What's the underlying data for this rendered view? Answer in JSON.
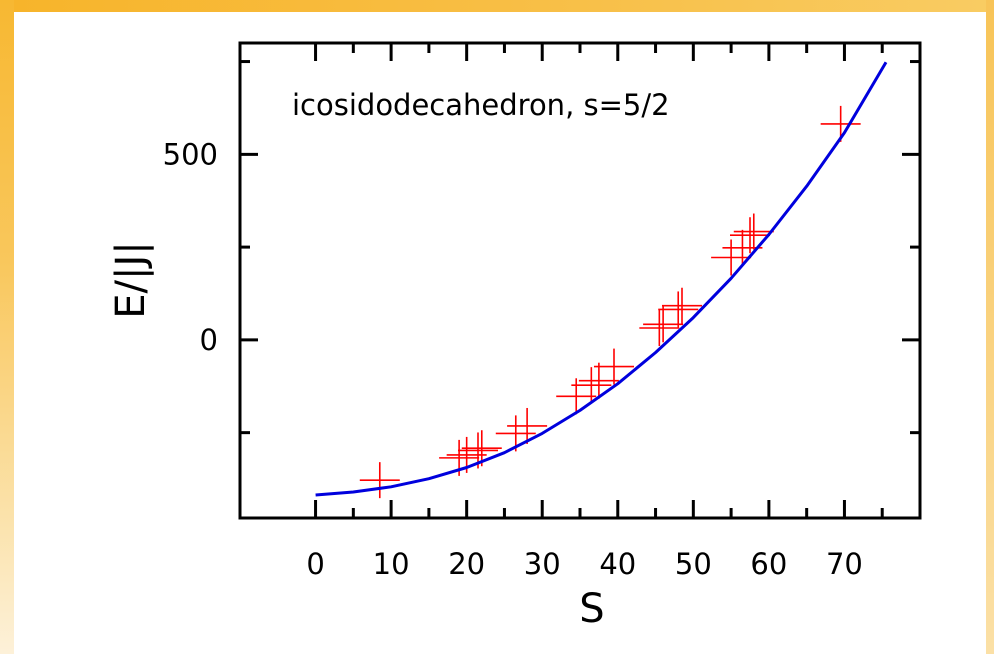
{
  "chart_data": {
    "type": "scatter",
    "annotation": "icosidodecahedron, s=5/2",
    "xlabel": "S",
    "ylabel": "E/|J|",
    "xlim": [
      -10,
      80
    ],
    "ylim": [
      -480,
      800
    ],
    "x_ticks": [
      0,
      10,
      20,
      30,
      40,
      50,
      60,
      70
    ],
    "y_ticks": [
      0,
      500
    ],
    "series": [
      {
        "type": "scatter",
        "marker": "plus",
        "color": "#ff0000",
        "points": [
          [
            8.5,
            -378
          ],
          [
            19,
            -318
          ],
          [
            20,
            -310
          ],
          [
            21.5,
            -298
          ],
          [
            22,
            -292
          ],
          [
            26.5,
            -252
          ],
          [
            28,
            -232
          ],
          [
            34.5,
            -152
          ],
          [
            36.5,
            -122
          ],
          [
            37.5,
            -110
          ],
          [
            39.5,
            -72
          ],
          [
            45.5,
            32
          ],
          [
            46,
            42
          ],
          [
            48,
            82
          ],
          [
            48.5,
            92
          ],
          [
            55,
            222
          ],
          [
            56.5,
            248
          ],
          [
            57.5,
            282
          ],
          [
            58,
            292
          ],
          [
            69.5,
            582
          ]
        ]
      },
      {
        "type": "line",
        "color": "#0000dd",
        "points": [
          [
            0,
            -418
          ],
          [
            5,
            -410
          ],
          [
            10,
            -396
          ],
          [
            15,
            -374
          ],
          [
            20,
            -344
          ],
          [
            25,
            -304
          ],
          [
            30,
            -252
          ],
          [
            35,
            -190
          ],
          [
            40,
            -118
          ],
          [
            45,
            -34
          ],
          [
            50,
            60
          ],
          [
            55,
            166
          ],
          [
            60,
            284
          ],
          [
            65,
            414
          ],
          [
            70,
            558
          ],
          [
            75.5,
            748
          ]
        ]
      }
    ]
  }
}
